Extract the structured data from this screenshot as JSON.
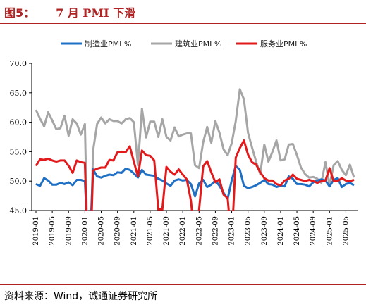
{
  "header": {
    "prefix": "图5：",
    "title": "7 月 PMI 下滑"
  },
  "source": "资料来源：Wind，诚通证券研究所",
  "colors": {
    "title": "#b22222",
    "rule": "#b22222",
    "manufacturing": "#1f6fc5",
    "construction": "#a6a6a6",
    "services": "#e31a1c"
  },
  "chart_data": {
    "type": "line",
    "ylim": [
      45.0,
      70.0
    ],
    "yticks": [
      "45.0",
      "50.0",
      "55.0",
      "60.0",
      "65.0",
      "70.0"
    ],
    "ytick_values": [
      45,
      50,
      55,
      60,
      65,
      70
    ],
    "xticks": [
      "2019-01",
      "2019-05",
      "2019-09",
      "2020-01",
      "2020-05",
      "2020-09",
      "2021-01",
      "2021-05",
      "2021-09",
      "2022-01",
      "2022-05",
      "2022-09",
      "2023-01",
      "2023-05",
      "2023-09",
      "2024-01",
      "2024-05",
      "2024-09",
      "2025-01",
      "2025-05"
    ],
    "legend": [
      "制造业PMI %",
      "建筑业PMI %",
      "服务业PMI %"
    ],
    "series": [
      {
        "name": "制造业PMI %",
        "color": "#1f6fc5",
        "values": [
          49.5,
          49.2,
          50.5,
          50.1,
          49.4,
          49.4,
          49.7,
          49.5,
          49.8,
          49.3,
          50.2,
          50.2,
          50.0,
          35.7,
          52.0,
          50.8,
          50.6,
          50.9,
          51.1,
          51.0,
          51.5,
          51.4,
          52.1,
          51.9,
          51.3,
          50.6,
          51.9,
          51.1,
          51.0,
          50.9,
          50.4,
          50.1,
          49.6,
          49.2,
          50.1,
          50.3,
          50.1,
          50.2,
          49.5,
          47.4,
          49.6,
          50.2,
          49.0,
          49.4,
          50.1,
          49.2,
          48.0,
          47.0,
          50.1,
          52.6,
          51.9,
          49.2,
          48.8,
          49.0,
          49.3,
          49.7,
          50.2,
          49.5,
          49.4,
          49.0,
          49.2,
          49.1,
          50.8,
          50.4,
          49.5,
          49.5,
          49.4,
          49.1,
          49.8,
          50.1,
          50.3,
          50.1,
          49.1,
          50.2,
          50.5,
          49.0,
          49.5,
          49.7,
          49.3
        ]
      },
      {
        "name": "建筑业PMI %",
        "color": "#a6a6a6",
        "values": [
          62.1,
          60.6,
          59.3,
          61.7,
          60.3,
          58.8,
          59.0,
          61.1,
          57.7,
          60.5,
          59.8,
          57.9,
          59.7,
          26.6,
          55.1,
          59.7,
          60.8,
          59.8,
          60.5,
          60.2,
          60.2,
          59.8,
          60.5,
          60.7,
          60.0,
          52.7,
          62.3,
          57.4,
          60.1,
          60.1,
          57.5,
          60.5,
          57.5,
          56.9,
          59.1,
          57.6,
          57.9,
          58.1,
          58.1,
          52.7,
          52.2,
          56.6,
          59.2,
          56.5,
          60.2,
          58.2,
          55.4,
          54.4,
          56.4,
          60.2,
          65.6,
          63.9,
          58.2,
          55.7,
          53.3,
          51.2,
          56.2,
          53.3,
          55.0,
          56.9,
          53.5,
          53.7,
          56.2,
          56.3,
          54.4,
          52.3,
          51.2,
          50.6,
          50.7,
          50.4,
          49.7,
          53.2,
          49.3,
          52.7,
          53.4,
          51.9,
          51.0,
          52.8,
          50.6
        ]
      },
      {
        "name": "服务业PMI %",
        "color": "#e31a1c",
        "values": [
          52.6,
          53.7,
          53.6,
          53.8,
          53.5,
          53.3,
          53.5,
          53.5,
          52.6,
          51.4,
          53.5,
          53.2,
          53.1,
          29.4,
          51.8,
          52.1,
          52.3,
          52.3,
          53.6,
          53.5,
          54.9,
          55.0,
          54.9,
          55.9,
          53.3,
          50.8,
          55.2,
          54.4,
          54.3,
          53.5,
          45.2,
          45.2,
          52.4,
          51.6,
          51.1,
          52.0,
          51.1,
          50.3,
          46.7,
          40.0,
          45.1,
          52.5,
          53.4,
          51.5,
          49.8,
          50.3,
          47.7,
          47.1,
          39.4,
          54.0,
          55.6,
          56.9,
          54.5,
          53.2,
          52.8,
          51.5,
          50.5,
          50.1,
          50.1,
          49.5,
          49.3,
          50.1,
          50.4,
          51.1,
          50.4,
          50.2,
          50.0,
          50.2,
          50.0,
          49.7,
          50.0,
          50.1,
          52.2,
          50.0,
          50.0,
          50.5,
          50.1,
          50.0,
          50.2
        ]
      }
    ]
  }
}
